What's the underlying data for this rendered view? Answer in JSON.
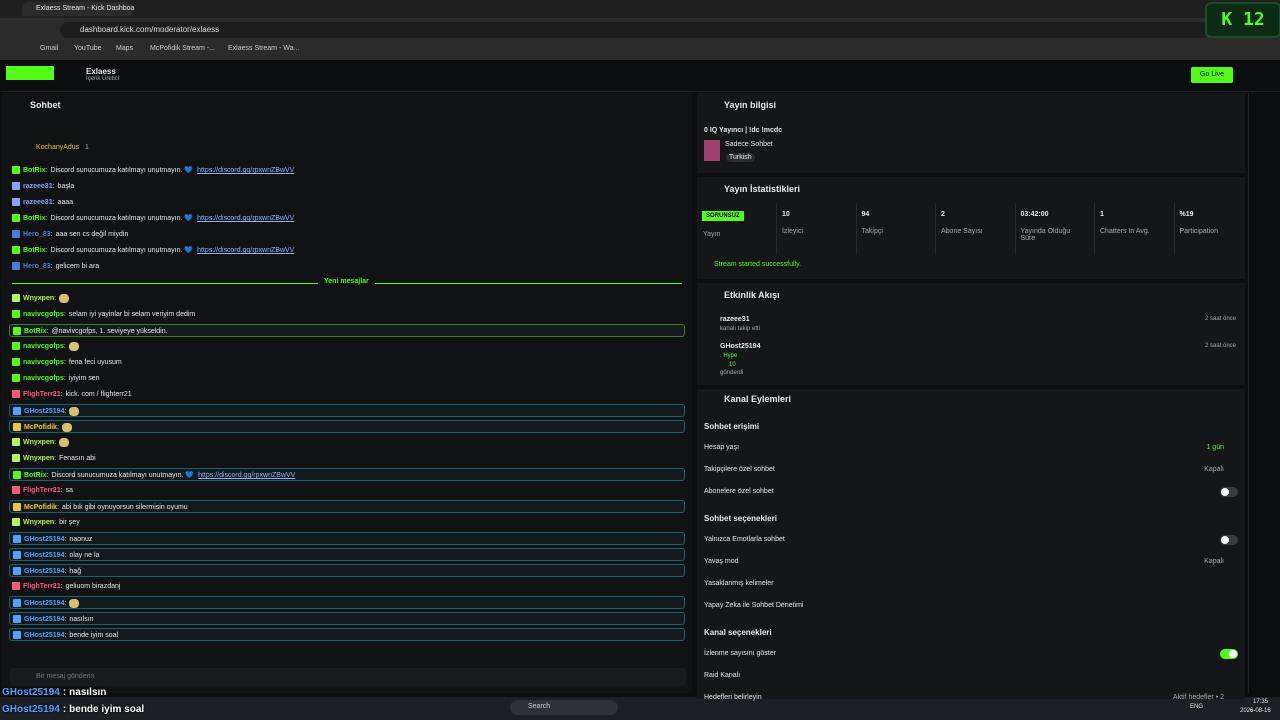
{
  "browser": {
    "tab": "Exlaess Stream - Kick Dashboa",
    "url": "dashboard.kick.com/moderator/exlaess",
    "bookmarks": [
      "Gmail",
      "YouTube",
      "Maps",
      "McPofidik Stream -...",
      "Exlaess Stream - Wa..."
    ]
  },
  "header": {
    "channel": "Exlaess",
    "role": "İçerik Üretici",
    "go_live": "Go Live"
  },
  "overlay": {
    "badge": "K 12"
  },
  "chat": {
    "title": "Sohbet",
    "pinned_user": "KochanyAdus",
    "pinned_count": "1",
    "separator": ":",
    "divider": "Yeni mesajlar",
    "divider_after": 7,
    "input_placeholder": "Bir mesaj gönderin",
    "messages": [
      {
        "user": "BotRix",
        "color": "#53fc18",
        "text": "Discord sunucumuza katılmayı unutmayın. 💙",
        "link": "https://discord.gg/rpxwnZBwVV"
      },
      {
        "user": "razeee31",
        "color": "#8da2ff",
        "text": "başla"
      },
      {
        "user": "razeee31",
        "color": "#8da2ff",
        "text": "aaaa"
      },
      {
        "user": "BotRix",
        "color": "#53fc18",
        "text": "Discord sunucumuza katılmayı unutmayın. 💙",
        "link": "https://discord.gg/rpxwnZBwVV"
      },
      {
        "user": "Hero_83",
        "color": "#4e7bd6",
        "text": "aaa sen cs değil miydin"
      },
      {
        "user": "BotRix",
        "color": "#53fc18",
        "text": "Discord sunucumuza katılmayı unutmayın. 💙",
        "link": "https://discord.gg/rpxwnZBwVV"
      },
      {
        "user": "Hero_83",
        "color": "#4e7bd6",
        "text": "gelicem bi ara"
      },
      {
        "user": "Wnyxpen",
        "color": "#b9f35c",
        "emote": true
      },
      {
        "user": "navivcgofps",
        "color": "#53fc18",
        "text": "selam iyi yayinlar bi selam veriyim dedim"
      },
      {
        "user": "BotRix",
        "color": "#53fc18",
        "text": "@navivcgofps, 1. seviyeye yükseldin.",
        "border": "#3f7a1c"
      },
      {
        "user": "navivcgofps",
        "color": "#53fc18",
        "emote": true
      },
      {
        "user": "navivcgofps",
        "color": "#53fc18",
        "text": "fena feci uyusum"
      },
      {
        "user": "navivcgofps",
        "color": "#53fc18",
        "text": "iyiyim sen"
      },
      {
        "user": "FlighTerr21",
        "color": "#ff5a7a",
        "text": "kick. com / flighterr21"
      },
      {
        "user": "GHost25194",
        "color": "#4fa3ff",
        "emote": true,
        "border": "#1f5e73"
      },
      {
        "user": "McPofidik",
        "color": "#f0c33c",
        "emote": true,
        "border": "#1f5e73"
      },
      {
        "user": "Wnyxpen",
        "color": "#b9f35c",
        "emote": true
      },
      {
        "user": "Wnyxpen",
        "color": "#b9f35c",
        "text": "Fenasın abi"
      },
      {
        "user": "BotRix",
        "color": "#53fc18",
        "text": "Discord sunucumuza katılmayı unutmayın. 💙",
        "link": "https://discord.gg/rpxwnZBwVV",
        "border": "#1f5e73"
      },
      {
        "user": "FlighTerr21",
        "color": "#ff5a7a",
        "text": "sa"
      },
      {
        "user": "McPofidik",
        "color": "#f0c33c",
        "text": "abi bık gibi oynuyorsun silermisin oyumu",
        "border": "#1f5e73"
      },
      {
        "user": "Wnyxpen",
        "color": "#b9f35c",
        "text": "bir şey"
      },
      {
        "user": "GHost25194",
        "color": "#4fa3ff",
        "text": "naonuz",
        "border": "#1f5e73"
      },
      {
        "user": "GHost25194",
        "color": "#4fa3ff",
        "text": "olay ne la",
        "border": "#1f5e73"
      },
      {
        "user": "GHost25194",
        "color": "#4fa3ff",
        "text": "hağ",
        "border": "#1f5e73"
      },
      {
        "user": "FlighTerr21",
        "color": "#ff5a7a",
        "text": "geliuom birazdanj"
      },
      {
        "user": "GHost25194",
        "color": "#4fa3ff",
        "emote": true,
        "border": "#1f5e73"
      },
      {
        "user": "GHost25194",
        "color": "#4fa3ff",
        "text": "nasılsın",
        "border": "#1f5e73"
      },
      {
        "user": "GHost25194",
        "color": "#4fa3ff",
        "text": "bende iyim soal",
        "border": "#1f5e73"
      }
    ]
  },
  "stream_info": {
    "title": "Yayın bilgisi",
    "stream_title": "0 IQ Yayıncı | !dc !mcdc",
    "category": "Sadece Sohbet",
    "tag": "Turkish"
  },
  "stats": {
    "title": "Yayın İstatistikleri",
    "status": "SORUNSUZ",
    "status_label": "Yayın",
    "items": [
      {
        "value": "10",
        "label": "İzleyici"
      },
      {
        "value": "94",
        "label": "Takipçi"
      },
      {
        "value": "2",
        "label": "Abone Sayısı"
      },
      {
        "value": "03:42:00",
        "label": "Yayında Olduğu Süre"
      },
      {
        "value": "1",
        "label": "Chatters In Avg."
      },
      {
        "value": "%19",
        "label": "Participation"
      }
    ],
    "message": "Stream started successfully."
  },
  "activity": {
    "title": "Etkinlik Akışı",
    "items": [
      {
        "user": "razeee31",
        "text": "kanalı takip etti",
        "time": "2 saat önce"
      },
      {
        "user": "GHost25194",
        "text": ". Hype",
        "amount": "10",
        "note": "gönderdi",
        "time": "2 saat önce"
      }
    ]
  },
  "actions": {
    "title": "Kanal Eylemleri",
    "sections": [
      {
        "title": "Sohbet erişimi",
        "rows": [
          {
            "label": "Hesap yaşı",
            "value": "1 gün",
            "accent": true
          },
          {
            "label": "Takipçilere özel sohbet",
            "value": "Kapalı"
          },
          {
            "label": "Abonelere özel sohbet",
            "on": false
          }
        ]
      },
      {
        "title": "Sohbet seçenekleri",
        "rows": [
          {
            "label": "Yalnızca Emotlarla sohbet",
            "on": false
          },
          {
            "label": "Yavaş mod",
            "value": "Kapalı"
          },
          {
            "label": "Yasaklanmış kelimeler"
          },
          {
            "label": "Yapay Zeka ile Sohbet Denetimi"
          }
        ]
      },
      {
        "title": "Kanal seçenekleri",
        "rows": [
          {
            "label": "İzlenme sayısını göster",
            "on": true
          },
          {
            "label": "Raid Kanalı"
          },
          {
            "label": "Hedefleri belirleyin",
            "value": "Aktif hedefler • 2"
          }
        ]
      }
    ]
  },
  "stream_overlay": {
    "messages": [
      {
        "user": "GHost25194",
        "text": "nasılsın"
      },
      {
        "user": "GHost25194",
        "text": "bende iyim soal"
      }
    ]
  },
  "taskbar": {
    "search": "Search",
    "lang": "ENG",
    "time": "17:35",
    "date": "2026-08-16"
  }
}
